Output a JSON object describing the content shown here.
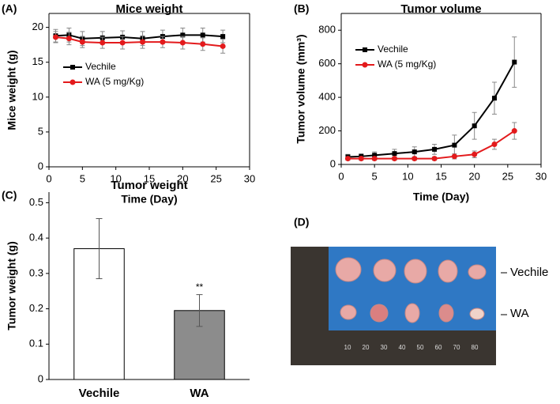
{
  "chart_data": [
    {
      "type": "line",
      "panel": "(A)",
      "title": "Mice weight",
      "xlabel": "Time (Day)",
      "ylabel": "Mice weight (g)",
      "x": [
        1,
        3,
        5,
        8,
        11,
        14,
        17,
        20,
        23,
        26
      ],
      "series": [
        {
          "name": "Vechile",
          "color": "#000000",
          "marker": "square",
          "values": [
            18.8,
            18.9,
            18.4,
            18.5,
            18.6,
            18.4,
            18.7,
            18.9,
            18.9,
            18.7
          ],
          "errors": [
            0.9,
            1.0,
            1.0,
            0.9,
            0.9,
            1.0,
            0.9,
            1.0,
            1.0,
            0.9
          ]
        },
        {
          "name": "WA (5 mg/Kg)",
          "color": "#e31a1c",
          "marker": "circle",
          "values": [
            18.6,
            18.4,
            17.9,
            17.8,
            17.8,
            17.9,
            17.9,
            17.8,
            17.6,
            17.3
          ],
          "errors": [
            0.8,
            0.9,
            0.8,
            0.8,
            0.9,
            0.9,
            0.8,
            0.9,
            0.9,
            1.0
          ]
        }
      ],
      "xlim": [
        0,
        30
      ],
      "xticks": [
        0,
        5,
        10,
        15,
        20,
        25,
        30
      ],
      "ylim": [
        0,
        22
      ],
      "yticks": [
        0,
        5,
        10,
        15,
        20
      ],
      "legend": "center left"
    },
    {
      "type": "line",
      "panel": "(B)",
      "title": "Tumor volume",
      "xlabel": "Time (Day)",
      "ylabel": "Tumor volume (mm³)",
      "x": [
        1,
        3,
        5,
        8,
        11,
        14,
        17,
        20,
        23,
        26
      ],
      "series": [
        {
          "name": "Vechile",
          "color": "#000000",
          "marker": "square",
          "values": [
            45,
            48,
            55,
            65,
            75,
            90,
            115,
            230,
            395,
            610
          ],
          "errors": [
            15,
            15,
            20,
            25,
            30,
            30,
            60,
            80,
            95,
            150
          ]
        },
        {
          "name": "WA (5 mg/Kg)",
          "color": "#e31a1c",
          "marker": "circle",
          "values": [
            35,
            35,
            35,
            35,
            35,
            35,
            48,
            60,
            120,
            200
          ],
          "errors": [
            10,
            10,
            10,
            10,
            10,
            10,
            15,
            20,
            30,
            50
          ]
        }
      ],
      "xlim": [
        0,
        30
      ],
      "xticks": [
        0,
        5,
        10,
        15,
        20,
        25,
        30
      ],
      "ylim": [
        0,
        900
      ],
      "yticks": [
        0,
        200,
        400,
        600,
        800
      ],
      "legend": "upper left"
    },
    {
      "type": "bar",
      "panel": "(C)",
      "title": "Tumor weight",
      "ylabel": "Tumor weight (g)",
      "categories": [
        "Vechile",
        "WA"
      ],
      "values": [
        0.37,
        0.195
      ],
      "errors": [
        0.085,
        0.045
      ],
      "colors": [
        "#ffffff",
        "#8c8c8c"
      ],
      "annotations": [
        null,
        "**"
      ],
      "ylim": [
        0,
        0.53
      ],
      "yticks": [
        0.0,
        0.1,
        0.2,
        0.3,
        0.4,
        0.5
      ]
    }
  ],
  "photo": {
    "panel": "(D)",
    "labels": [
      "Vechile",
      "WA"
    ],
    "ruler_labels": [
      "10",
      "20",
      "30",
      "40",
      "50",
      "60",
      "70",
      "80"
    ]
  }
}
